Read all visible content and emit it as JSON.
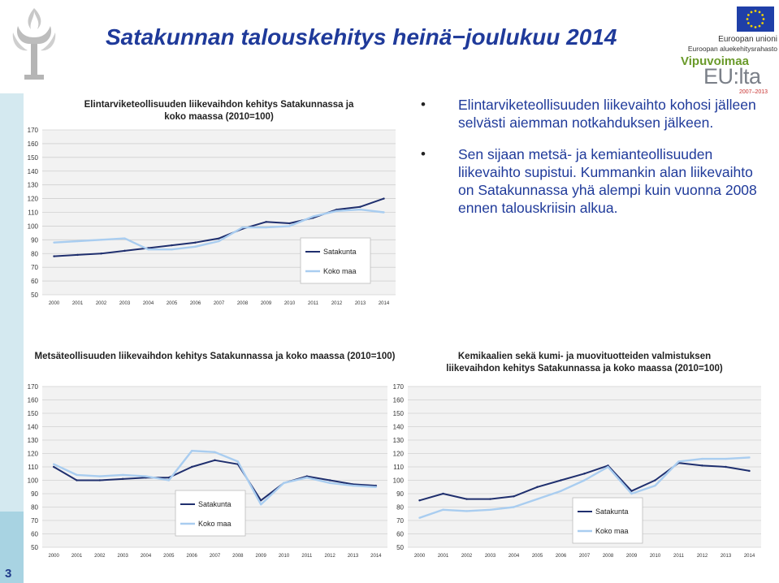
{
  "slide": {
    "title": "Satakunnan talouskehitys heinä−joulukuu 2014",
    "page_number": "3"
  },
  "logos": {
    "eu_name": "Euroopan unioni",
    "eu_fund": "Euroopan aluekehitysrahasto",
    "vipuvoimaa": "Vipuvoimaa",
    "eulta": "EU:lta",
    "eulta_years": "2007–2013"
  },
  "bullets": [
    "Elintarviketeollisuuden liikevaihto kohosi jälleen selvästi aiemman notkahduksen jälkeen.",
    "Sen sijaan metsä- ja kemianteollisuuden liikevaihto supistui. Kummankin alan liikevaihto on Satakunnassa yhä alempi kuin vuonna 2008 ennen talouskriisin alkua."
  ],
  "colors": {
    "title": "#1f3a9a",
    "satakunta": "#1f2f6e",
    "koko_maa": "#a9cdf0",
    "grid": "#d0d0d0",
    "chart_bg": "#f2f2f2"
  },
  "chart_data": [
    {
      "type": "line",
      "title": "Elintarviketeollisuuden liikevaihdon kehitys Satakunnassa ja koko maassa (2010=100)",
      "x": [
        "2000",
        "2001",
        "2002",
        "2003",
        "2004",
        "2005",
        "2006",
        "2007",
        "2008",
        "2009",
        "2010",
        "2011",
        "2012",
        "2013",
        "2014"
      ],
      "ylim": [
        50,
        170
      ],
      "yticks": [
        "50",
        "60",
        "70",
        "80",
        "90",
        "100",
        "110",
        "120",
        "130",
        "140",
        "150",
        "160",
        "170"
      ],
      "grid": true,
      "legend_position": "right",
      "series": [
        {
          "name": "Satakunta",
          "values": [
            78,
            79,
            80,
            82,
            84,
            86,
            88,
            91,
            98,
            103,
            102,
            106,
            112,
            114,
            120
          ]
        },
        {
          "name": "Koko maa",
          "values": [
            88,
            89,
            90,
            91,
            83,
            83,
            85,
            89,
            99,
            99,
            100,
            107,
            111,
            112,
            110
          ]
        }
      ]
    },
    {
      "type": "line",
      "title": "Metsäteollisuuden liikevaihdon kehitys Satakunnassa ja koko maassa (2010=100)",
      "x": [
        "2000",
        "2001",
        "2002",
        "2003",
        "2004",
        "2005",
        "2006",
        "2007",
        "2008",
        "2009",
        "2010",
        "2011",
        "2012",
        "2013",
        "2014"
      ],
      "ylim": [
        50,
        170
      ],
      "yticks": [
        "50",
        "60",
        "70",
        "80",
        "90",
        "100",
        "110",
        "120",
        "130",
        "140",
        "150",
        "160",
        "170"
      ],
      "grid": true,
      "legend_position": "center",
      "series": [
        {
          "name": "Satakunta",
          "values": [
            110,
            100,
            100,
            101,
            102,
            102,
            110,
            115,
            112,
            85,
            98,
            103,
            100,
            97,
            96
          ]
        },
        {
          "name": "Koko maa",
          "values": [
            112,
            104,
            103,
            104,
            103,
            100,
            122,
            121,
            114,
            82,
            98,
            102,
            98,
            96,
            95
          ]
        }
      ]
    },
    {
      "type": "line",
      "title": "Kemikaalien sekä kumi- ja muovituotteiden valmistuksen liikevaihdon kehitys Satakunnassa ja koko maassa (2010=100)",
      "x": [
        "2000",
        "2001",
        "2002",
        "2003",
        "2004",
        "2005",
        "2006",
        "2007",
        "2008",
        "2009",
        "2010",
        "2011",
        "2012",
        "2013",
        "2014"
      ],
      "ylim": [
        50,
        170
      ],
      "yticks": [
        "50",
        "60",
        "70",
        "80",
        "90",
        "100",
        "110",
        "120",
        "130",
        "140",
        "150",
        "160",
        "170"
      ],
      "grid": true,
      "legend_position": "center",
      "series": [
        {
          "name": "Satakunta",
          "values": [
            85,
            90,
            86,
            86,
            88,
            95,
            100,
            105,
            111,
            92,
            100,
            113,
            111,
            110,
            107
          ]
        },
        {
          "name": "Koko maa",
          "values": [
            72,
            78,
            77,
            78,
            80,
            86,
            92,
            100,
            110,
            90,
            96,
            114,
            116,
            116,
            117
          ]
        }
      ]
    }
  ]
}
